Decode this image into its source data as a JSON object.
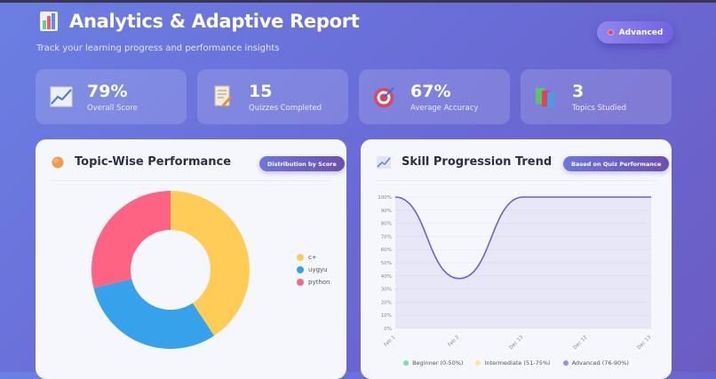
{
  "header": {
    "title": "Analytics & Adaptive Report",
    "subtitle": "Track your learning progress and performance insights",
    "level_badge": "Advanced",
    "title_icon": "bar-chart-icon"
  },
  "stats": [
    {
      "value": "79%",
      "label": "Overall Score",
      "icon": "chart-increasing-icon"
    },
    {
      "value": "15",
      "label": "Quizzes Completed",
      "icon": "memo-icon"
    },
    {
      "value": "67%",
      "label": "Average Accuracy",
      "icon": "target-icon"
    },
    {
      "value": "3",
      "label": "Topics Studied",
      "icon": "books-icon"
    }
  ],
  "topic_panel": {
    "title": "Topic-Wise Performance",
    "badge": "Distribution by Score",
    "icon": "orange-circle-icon"
  },
  "trend_panel": {
    "title": "Skill Progression Trend",
    "badge": "Based on Quiz Performance",
    "icon": "chart-increasing-icon",
    "legend": [
      {
        "label": "Beginner (0-50%)",
        "color": "#7ee0a4"
      },
      {
        "label": "Intermediate (51-75%)",
        "color": "#fde49a"
      },
      {
        "label": "Advanced (76-90%)",
        "color": "#9b8cf0"
      }
    ]
  },
  "chart_data": [
    {
      "type": "pie",
      "donut": true,
      "categories": [
        "c+",
        "uygyu",
        "python"
      ],
      "values": [
        40.7,
        30.6,
        28.7
      ],
      "colors": [
        "#ffcd56",
        "#36a2eb",
        "#ff6384"
      ],
      "legend": "right"
    },
    {
      "type": "area",
      "x": [
        "Feb 1",
        "Feb 2",
        "Dec 13",
        "Dec 12",
        "Dec 13"
      ],
      "values": [
        100,
        38,
        100,
        100,
        100
      ],
      "ylim": [
        0,
        100
      ],
      "yticks": [
        "0%",
        "10%",
        "20%",
        "30%",
        "40%",
        "50%",
        "60%",
        "70%",
        "80%",
        "90%",
        "100%"
      ],
      "color": "#6a5fd6",
      "grid": true
    }
  ]
}
